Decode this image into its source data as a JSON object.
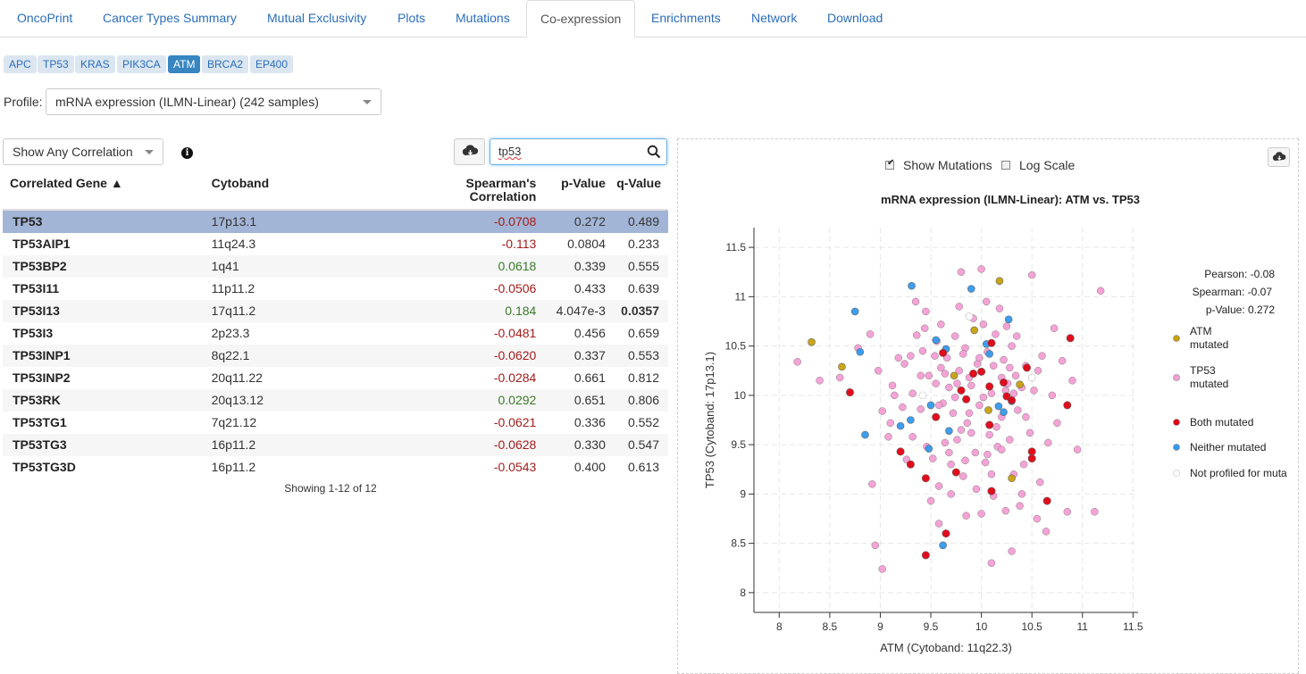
{
  "tabs": [
    {
      "label": "OncoPrint",
      "active": false
    },
    {
      "label": "Cancer Types Summary",
      "active": false
    },
    {
      "label": "Mutual Exclusivity",
      "active": false
    },
    {
      "label": "Plots",
      "active": false
    },
    {
      "label": "Mutations",
      "active": false
    },
    {
      "label": "Co-expression",
      "active": true
    },
    {
      "label": "Enrichments",
      "active": false
    },
    {
      "label": "Network",
      "active": false
    },
    {
      "label": "Download",
      "active": false
    }
  ],
  "genes": [
    {
      "label": "APC",
      "active": false
    },
    {
      "label": "TP53",
      "active": false
    },
    {
      "label": "KRAS",
      "active": false
    },
    {
      "label": "PIK3CA",
      "active": false
    },
    {
      "label": "ATM",
      "active": true
    },
    {
      "label": "BRCA2",
      "active": false
    },
    {
      "label": "EP400",
      "active": false
    }
  ],
  "profile": {
    "label": "Profile:",
    "value": "mRNA expression (ILMN-Linear) (242 samples)"
  },
  "correlation_filter": {
    "value": "Show Any Correlation"
  },
  "search": {
    "value": "tp53"
  },
  "table": {
    "headers": {
      "gene": "Correlated Gene ▲",
      "cytoband": "Cytoband",
      "spearman": "Spearman's Correlation",
      "pvalue": "p-Value",
      "qvalue": "q-Value"
    },
    "rows": [
      {
        "gene": "TP53",
        "cytoband": "17p13.1",
        "corr": "-0.0708",
        "p": "0.272",
        "q": "0.489",
        "sel": true
      },
      {
        "gene": "TP53AIP1",
        "cytoband": "11q24.3",
        "corr": "-0.113",
        "p": "0.0804",
        "q": "0.233"
      },
      {
        "gene": "TP53BP2",
        "cytoband": "1q41",
        "corr": "0.0618",
        "p": "0.339",
        "q": "0.555"
      },
      {
        "gene": "TP53I11",
        "cytoband": "11p11.2",
        "corr": "-0.0506",
        "p": "0.433",
        "q": "0.639"
      },
      {
        "gene": "TP53I13",
        "cytoband": "17q11.2",
        "corr": "0.184",
        "p": "4.047e-3",
        "q": "0.0357",
        "qbold": true
      },
      {
        "gene": "TP53I3",
        "cytoband": "2p23.3",
        "corr": "-0.0481",
        "p": "0.456",
        "q": "0.659"
      },
      {
        "gene": "TP53INP1",
        "cytoband": "8q22.1",
        "corr": "-0.0620",
        "p": "0.337",
        "q": "0.553"
      },
      {
        "gene": "TP53INP2",
        "cytoband": "20q11.22",
        "corr": "-0.0284",
        "p": "0.661",
        "q": "0.812"
      },
      {
        "gene": "TP53RK",
        "cytoband": "20q13.12",
        "corr": "0.0292",
        "p": "0.651",
        "q": "0.806"
      },
      {
        "gene": "TP53TG1",
        "cytoband": "7q21.12",
        "corr": "-0.0621",
        "p": "0.336",
        "q": "0.552"
      },
      {
        "gene": "TP53TG3",
        "cytoband": "16p11.2",
        "corr": "-0.0628",
        "p": "0.330",
        "q": "0.547"
      },
      {
        "gene": "TP53TG3D",
        "cytoband": "16p11.2",
        "corr": "-0.0543",
        "p": "0.400",
        "q": "0.613"
      }
    ],
    "showing": "Showing 1-12 of 12"
  },
  "plot_options": {
    "show_mutations": "Show Mutations",
    "show_mutations_checked": true,
    "log_scale": "Log Scale",
    "log_scale_checked": false
  },
  "chart_data": {
    "type": "scatter",
    "title": "mRNA expression (ILMN-Linear): ATM vs. TP53",
    "xlabel": "ATM (Cytoband: 11q22.3)",
    "ylabel": "TP53 (Cytoband: 17p13.1)",
    "xlim": [
      7.75,
      11.55
    ],
    "ylim": [
      7.8,
      11.7
    ],
    "xticks": [
      "8",
      "8.5",
      "9",
      "9.5",
      "10",
      "10.5",
      "11",
      "11.5"
    ],
    "yticks": [
      "8",
      "8.5",
      "9",
      "9.5",
      "10",
      "10.5",
      "11",
      "11.5"
    ],
    "grid": true,
    "stats": [
      "Pearson: -0.08",
      "Spearman: -0.07",
      "p-Value: 0.272"
    ],
    "legend": [
      {
        "label": "ATM mutated",
        "color": "#c8a00a"
      },
      {
        "label": "TP53 mutated",
        "color": "#f49ed4"
      },
      {
        "label": "Both mutated",
        "color": "#e00010"
      },
      {
        "label": "Neither mutated",
        "color": "#3399ee"
      },
      {
        "label": "Not profiled for muta",
        "color": "#ffffff"
      }
    ],
    "series": [
      {
        "name": "ATM mutated",
        "color": "#c8a00a",
        "points": [
          [
            8.32,
            10.54
          ],
          [
            8.62,
            10.29
          ],
          [
            9.93,
            10.66
          ],
          [
            10.18,
            11.16
          ],
          [
            9.73,
            10.2
          ],
          [
            10.07,
            9.85
          ],
          [
            10.3,
            9.16
          ],
          [
            10.38,
            10.11
          ]
        ]
      },
      {
        "name": "Neither mutated",
        "color": "#3399ee",
        "points": [
          [
            8.75,
            10.85
          ],
          [
            8.8,
            10.44
          ],
          [
            9.31,
            11.11
          ],
          [
            9.55,
            10.56
          ],
          [
            9.65,
            10.47
          ],
          [
            9.9,
            11.08
          ],
          [
            10.27,
            10.77
          ],
          [
            8.85,
            9.6
          ],
          [
            9.2,
            9.69
          ],
          [
            9.3,
            9.75
          ],
          [
            9.48,
            9.46
          ],
          [
            9.68,
            9.64
          ],
          [
            10.05,
            10.52
          ],
          [
            10.17,
            9.89
          ],
          [
            10.22,
            9.83
          ],
          [
            10.3,
            9.94
          ],
          [
            10.08,
            10.42
          ],
          [
            9.62,
            8.48
          ],
          [
            9.5,
            9.9
          ]
        ]
      },
      {
        "name": "Both mutated",
        "color": "#e00010",
        "points": [
          [
            8.7,
            10.03
          ],
          [
            9.2,
            9.43
          ],
          [
            9.3,
            9.3
          ],
          [
            9.45,
            9.16
          ],
          [
            9.55,
            9.78
          ],
          [
            9.62,
            10.43
          ],
          [
            9.8,
            10.05
          ],
          [
            9.85,
            9.96
          ],
          [
            9.92,
            10.22
          ],
          [
            10.0,
            10.24
          ],
          [
            10.08,
            10.09
          ],
          [
            10.1,
            10.53
          ],
          [
            10.22,
            10.13
          ],
          [
            10.25,
            9.99
          ],
          [
            10.3,
            9.95
          ],
          [
            10.45,
            10.28
          ],
          [
            10.5,
            9.43
          ],
          [
            10.5,
            9.36
          ],
          [
            10.65,
            8.93
          ],
          [
            10.85,
            9.9
          ],
          [
            10.88,
            10.58
          ],
          [
            9.65,
            8.6
          ],
          [
            9.45,
            8.38
          ],
          [
            9.75,
            9.22
          ],
          [
            10.1,
            9.03
          ],
          [
            10.08,
            9.7
          ]
        ]
      },
      {
        "name": "Not profiled",
        "color": "#ffffff",
        "points": [
          [
            9.42,
            10.0
          ],
          [
            9.88,
            10.8
          ],
          [
            10.5,
            10.18
          ]
        ]
      },
      {
        "name": "TP53 mutated",
        "color": "#f49ed4",
        "points": [
          [
            8.18,
            10.34
          ],
          [
            8.4,
            10.15
          ],
          [
            8.6,
            10.18
          ],
          [
            8.78,
            10.48
          ],
          [
            8.9,
            10.62
          ],
          [
            8.98,
            10.25
          ],
          [
            9.02,
            9.84
          ],
          [
            9.08,
            9.58
          ],
          [
            9.1,
            9.72
          ],
          [
            9.14,
            10.0
          ],
          [
            9.18,
            10.38
          ],
          [
            9.24,
            10.32
          ],
          [
            9.26,
            9.35
          ],
          [
            9.32,
            10.02
          ],
          [
            9.36,
            10.61
          ],
          [
            9.4,
            9.86
          ],
          [
            9.42,
            10.45
          ],
          [
            9.46,
            9.48
          ],
          [
            9.48,
            10.2
          ],
          [
            9.52,
            9.36
          ],
          [
            9.55,
            10.12
          ],
          [
            9.56,
            10.55
          ],
          [
            9.58,
            9.08
          ],
          [
            9.6,
            10.28
          ],
          [
            9.62,
            9.92
          ],
          [
            9.64,
            9.52
          ],
          [
            9.66,
            10.38
          ],
          [
            9.68,
            10.08
          ],
          [
            9.7,
            9.3
          ],
          [
            9.72,
            9.82
          ],
          [
            9.74,
            10.6
          ],
          [
            9.76,
            9.55
          ],
          [
            9.78,
            10.25
          ],
          [
            9.8,
            11.25
          ],
          [
            9.82,
            9.18
          ],
          [
            9.84,
            10.48
          ],
          [
            9.86,
            9.72
          ],
          [
            9.88,
            10.18
          ],
          [
            9.9,
            9.62
          ],
          [
            9.92,
            10.78
          ],
          [
            9.94,
            9.42
          ],
          [
            9.96,
            10.32
          ],
          [
            9.98,
            9.9
          ],
          [
            10.0,
            11.28
          ],
          [
            10.02,
            10.72
          ],
          [
            10.04,
            9.32
          ],
          [
            10.06,
            10.44
          ],
          [
            10.08,
            9.6
          ],
          [
            10.1,
            10.02
          ],
          [
            10.12,
            8.98
          ],
          [
            10.14,
            10.62
          ],
          [
            10.16,
            9.48
          ],
          [
            10.18,
            10.88
          ],
          [
            10.2,
            9.78
          ],
          [
            10.22,
            10.36
          ],
          [
            10.24,
            8.83
          ],
          [
            10.26,
            10.12
          ],
          [
            10.28,
            9.55
          ],
          [
            10.3,
            10.5
          ],
          [
            10.32,
            9.2
          ],
          [
            10.34,
            10.2
          ],
          [
            10.36,
            9.85
          ],
          [
            10.38,
            8.88
          ],
          [
            10.4,
            10.08
          ],
          [
            10.42,
            9.3
          ],
          [
            10.44,
            10.3
          ],
          [
            10.48,
            9.62
          ],
          [
            10.5,
            11.22
          ],
          [
            10.52,
            10.05
          ],
          [
            10.55,
            8.75
          ],
          [
            10.58,
            9.12
          ],
          [
            10.6,
            10.4
          ],
          [
            10.64,
            8.62
          ],
          [
            10.7,
            10.0
          ],
          [
            10.75,
            9.72
          ],
          [
            10.8,
            10.35
          ],
          [
            10.85,
            8.82
          ],
          [
            10.9,
            10.15
          ],
          [
            10.95,
            9.45
          ],
          [
            11.12,
            8.82
          ],
          [
            11.18,
            11.06
          ],
          [
            8.92,
            9.1
          ],
          [
            8.95,
            8.48
          ],
          [
            9.02,
            8.24
          ],
          [
            9.5,
            8.93
          ],
          [
            9.58,
            8.7
          ],
          [
            9.7,
            9.0
          ],
          [
            9.85,
            8.78
          ],
          [
            10.0,
            8.8
          ],
          [
            10.1,
            8.3
          ],
          [
            10.3,
            8.42
          ],
          [
            10.4,
            9.0
          ],
          [
            9.35,
            10.95
          ],
          [
            9.45,
            10.85
          ],
          [
            9.6,
            10.72
          ],
          [
            9.78,
            10.9
          ],
          [
            10.05,
            10.95
          ],
          [
            10.25,
            10.7
          ],
          [
            10.35,
            10.6
          ],
          [
            9.3,
            10.4
          ],
          [
            9.4,
            10.2
          ],
          [
            9.58,
            9.9
          ],
          [
            9.8,
            9.65
          ],
          [
            9.95,
            9.05
          ],
          [
            10.1,
            9.2
          ],
          [
            10.2,
            9.45
          ],
          [
            10.15,
            9.68
          ],
          [
            9.88,
            9.82
          ],
          [
            9.76,
            10.12
          ],
          [
            9.64,
            10.22
          ],
          [
            9.54,
            10.4
          ],
          [
            9.44,
            10.68
          ],
          [
            9.32,
            9.58
          ],
          [
            9.22,
            9.88
          ],
          [
            9.12,
            10.1
          ],
          [
            9.74,
            9.98
          ],
          [
            10.02,
            9.98
          ],
          [
            10.28,
            10.28
          ],
          [
            10.44,
            9.78
          ],
          [
            10.56,
            10.25
          ],
          [
            10.66,
            9.52
          ],
          [
            10.72,
            10.68
          ],
          [
            9.98,
            10.38
          ],
          [
            9.82,
            10.42
          ],
          [
            9.9,
            10.1
          ],
          [
            10.12,
            10.3
          ],
          [
            10.24,
            10.05
          ],
          [
            9.68,
            9.42
          ],
          [
            9.84,
            9.34
          ],
          [
            10.06,
            9.4
          ],
          [
            10.2,
            10.18
          ],
          [
            10.32,
            10.02
          ]
        ]
      }
    ]
  }
}
